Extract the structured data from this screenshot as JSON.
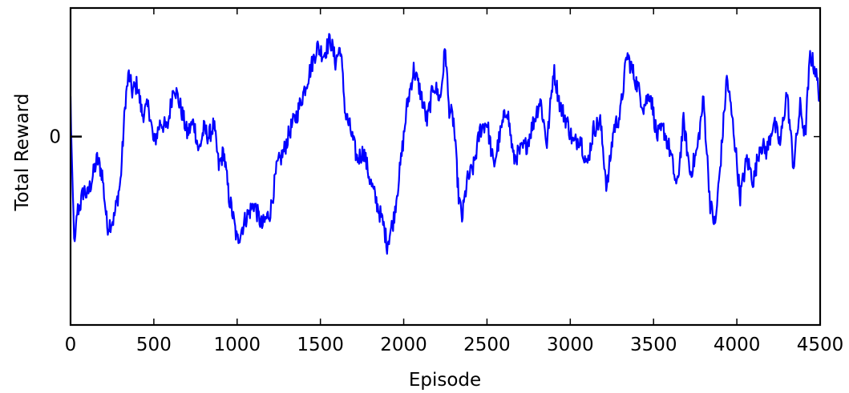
{
  "chart_data": {
    "type": "line",
    "title": "",
    "xlabel": "Episode",
    "ylabel": "Total Reward",
    "xlim": [
      0,
      4500
    ],
    "ylim": [
      -1.26,
      0.86
    ],
    "grid": false,
    "legend": "none",
    "x_ticks": [
      0,
      500,
      1000,
      1500,
      2000,
      2500,
      3000,
      3500,
      4000,
      4500
    ],
    "x_tick_labels": [
      "0",
      "500",
      "1000",
      "1500",
      "2000",
      "2500",
      "3000",
      "3500",
      "4000",
      "4500"
    ],
    "y_ticks": [
      0
    ],
    "y_tick_labels": [
      "0"
    ],
    "series": [
      {
        "color": "#0000ff",
        "x": [
          0,
          10,
          25,
          40,
          60,
          80,
          100,
          130,
          160,
          190,
          220,
          260,
          300,
          330,
          350,
          370,
          400,
          430,
          470,
          500,
          540,
          580,
          620,
          660,
          700,
          740,
          770,
          800,
          830,
          860,
          890,
          920,
          950,
          970,
          1000,
          1050,
          1100,
          1150,
          1200,
          1240,
          1280,
          1320,
          1360,
          1400,
          1440,
          1480,
          1520,
          1560,
          1590,
          1620,
          1650,
          1680,
          1720,
          1760,
          1800,
          1840,
          1880,
          1900,
          1940,
          1980,
          2020,
          2060,
          2100,
          2140,
          2180,
          2220,
          2250,
          2270,
          2300,
          2330,
          2350,
          2380,
          2420,
          2460,
          2500,
          2540,
          2580,
          2620,
          2660,
          2700,
          2740,
          2780,
          2820,
          2860,
          2900,
          2940,
          2980,
          3020,
          3060,
          3100,
          3140,
          3180,
          3220,
          3260,
          3300,
          3340,
          3370,
          3400,
          3440,
          3480,
          3520,
          3560,
          3600,
          3640,
          3680,
          3720,
          3760,
          3800,
          3840,
          3870,
          3900,
          3940,
          3980,
          4020,
          4060,
          4100,
          4140,
          4180,
          4220,
          4260,
          4300,
          4340,
          4380,
          4410,
          4440,
          4470,
          4500
        ],
        "values": [
          0.25,
          -0.3,
          -0.75,
          -0.5,
          -0.45,
          -0.35,
          -0.4,
          -0.28,
          -0.15,
          -0.25,
          -0.6,
          -0.55,
          -0.3,
          0.25,
          0.42,
          0.3,
          0.35,
          0.15,
          0.2,
          -0.05,
          0.1,
          0.05,
          0.35,
          0.2,
          0.02,
          0.1,
          -0.1,
          0.05,
          0.0,
          0.08,
          -0.2,
          -0.1,
          -0.4,
          -0.5,
          -0.7,
          -0.55,
          -0.45,
          -0.6,
          -0.5,
          -0.2,
          -0.1,
          0.05,
          0.15,
          0.3,
          0.45,
          0.6,
          0.55,
          0.65,
          0.5,
          0.6,
          0.15,
          0.05,
          -0.15,
          -0.1,
          -0.3,
          -0.45,
          -0.6,
          -0.72,
          -0.55,
          -0.2,
          0.2,
          0.45,
          0.3,
          0.1,
          0.35,
          0.25,
          0.6,
          0.2,
          0.1,
          -0.4,
          -0.55,
          -0.3,
          -0.2,
          0.05,
          0.1,
          -0.2,
          0.02,
          0.2,
          -0.15,
          -0.1,
          -0.05,
          0.1,
          0.25,
          -0.05,
          0.45,
          0.2,
          0.1,
          -0.05,
          0.0,
          -0.2,
          0.05,
          0.1,
          -0.35,
          0.05,
          0.15,
          0.55,
          0.45,
          0.35,
          0.2,
          0.3,
          0.0,
          0.05,
          -0.1,
          -0.35,
          0.1,
          -0.25,
          -0.1,
          0.25,
          -0.45,
          -0.6,
          -0.2,
          0.4,
          0.05,
          -0.4,
          -0.15,
          -0.3,
          -0.05,
          -0.1,
          0.1,
          -0.05,
          0.3,
          -0.2,
          0.2,
          0.0,
          0.55,
          0.45,
          0.25
        ]
      }
    ]
  }
}
